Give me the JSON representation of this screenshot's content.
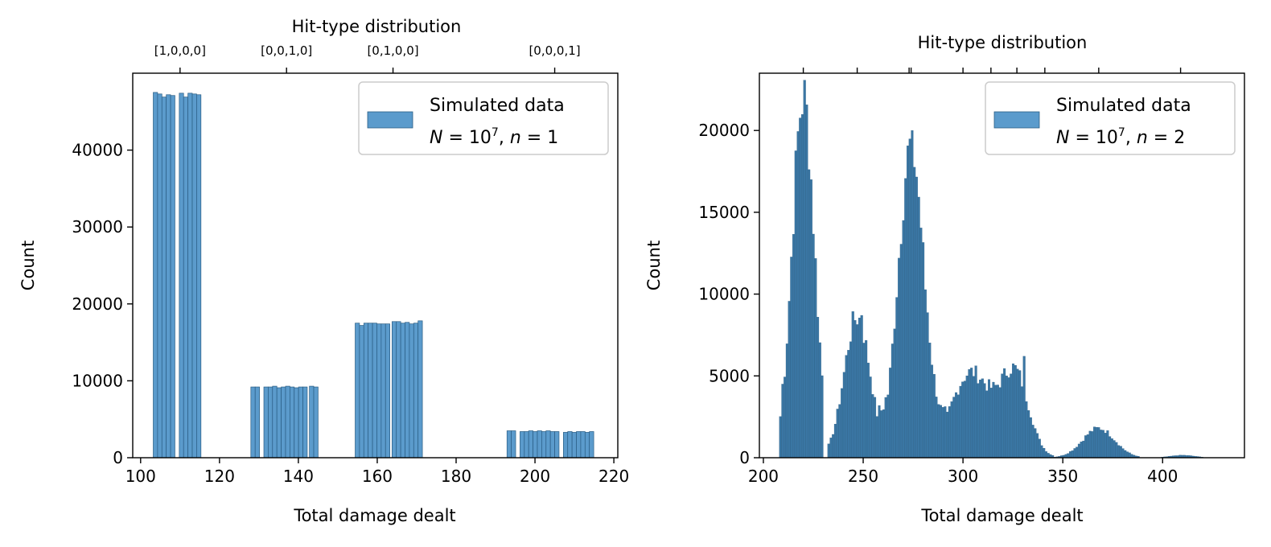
{
  "chart_data": [
    {
      "type": "bar",
      "panel": "left",
      "xlabel": "Total damage dealt",
      "ylabel": "Count",
      "top_axis_title": "Hit-type distribution",
      "xlim": [
        98,
        221
      ],
      "ylim": [
        0,
        50000
      ],
      "xticks": [
        100,
        120,
        140,
        160,
        180,
        200,
        220
      ],
      "yticks": [
        0,
        10000,
        20000,
        30000,
        40000
      ],
      "top_ticks": [
        {
          "x": 110,
          "label": "[1,0,0,0]"
        },
        {
          "x": 137,
          "label": "[0,0,1,0]"
        },
        {
          "x": 164,
          "label": "[0,1,0,0]"
        },
        {
          "x": 205,
          "label": "[0,0,0,1]"
        }
      ],
      "legend": {
        "label_line1": "Simulated data",
        "N_base": "10",
        "N_exp": "7",
        "n_value": "1",
        "position": "upper right"
      },
      "bin_width": 1.1,
      "bars": [
        {
          "x": 103.75,
          "y": 47500
        },
        {
          "x": 104.85,
          "y": 47300
        },
        {
          "x": 105.95,
          "y": 46900
        },
        {
          "x": 107.05,
          "y": 47200
        },
        {
          "x": 108.15,
          "y": 47100
        },
        {
          "x": 110.35,
          "y": 47400
        },
        {
          "x": 111.45,
          "y": 46900
        },
        {
          "x": 112.55,
          "y": 47400
        },
        {
          "x": 113.65,
          "y": 47300
        },
        {
          "x": 114.75,
          "y": 47200
        },
        {
          "x": 128.5,
          "y": 9200
        },
        {
          "x": 129.6,
          "y": 9200
        },
        {
          "x": 131.8,
          "y": 9200
        },
        {
          "x": 132.9,
          "y": 9200
        },
        {
          "x": 134.0,
          "y": 9300
        },
        {
          "x": 135.1,
          "y": 9100
        },
        {
          "x": 136.2,
          "y": 9200
        },
        {
          "x": 137.3,
          "y": 9300
        },
        {
          "x": 138.4,
          "y": 9200
        },
        {
          "x": 139.5,
          "y": 9100
        },
        {
          "x": 140.6,
          "y": 9200
        },
        {
          "x": 141.7,
          "y": 9200
        },
        {
          "x": 143.35,
          "y": 9300
        },
        {
          "x": 144.45,
          "y": 9200
        },
        {
          "x": 154.95,
          "y": 17500
        },
        {
          "x": 156.05,
          "y": 17200
        },
        {
          "x": 157.15,
          "y": 17500
        },
        {
          "x": 158.25,
          "y": 17500
        },
        {
          "x": 159.35,
          "y": 17500
        },
        {
          "x": 160.45,
          "y": 17400
        },
        {
          "x": 161.55,
          "y": 17400
        },
        {
          "x": 162.65,
          "y": 17400
        },
        {
          "x": 164.3,
          "y": 17700
        },
        {
          "x": 165.4,
          "y": 17700
        },
        {
          "x": 166.5,
          "y": 17500
        },
        {
          "x": 167.6,
          "y": 17600
        },
        {
          "x": 168.7,
          "y": 17400
        },
        {
          "x": 169.8,
          "y": 17500
        },
        {
          "x": 170.9,
          "y": 17800
        },
        {
          "x": 193.45,
          "y": 3500
        },
        {
          "x": 194.55,
          "y": 3500
        },
        {
          "x": 196.75,
          "y": 3400
        },
        {
          "x": 197.85,
          "y": 3400
        },
        {
          "x": 198.95,
          "y": 3500
        },
        {
          "x": 200.05,
          "y": 3400
        },
        {
          "x": 201.15,
          "y": 3500
        },
        {
          "x": 202.25,
          "y": 3400
        },
        {
          "x": 203.35,
          "y": 3500
        },
        {
          "x": 204.45,
          "y": 3400
        },
        {
          "x": 205.55,
          "y": 3400
        },
        {
          "x": 207.75,
          "y": 3300
        },
        {
          "x": 208.85,
          "y": 3400
        },
        {
          "x": 209.95,
          "y": 3300
        },
        {
          "x": 211.05,
          "y": 3400
        },
        {
          "x": 212.15,
          "y": 3400
        },
        {
          "x": 213.25,
          "y": 3300
        },
        {
          "x": 214.35,
          "y": 3400
        }
      ]
    },
    {
      "type": "bar",
      "panel": "right",
      "xlabel": "Total damage dealt",
      "ylabel": "Count",
      "top_axis_title": "Hit-type distribution",
      "xlim": [
        198,
        441
      ],
      "ylim": [
        0,
        23500
      ],
      "xticks": [
        200,
        250,
        300,
        350,
        400
      ],
      "yticks": [
        0,
        5000,
        10000,
        15000,
        20000
      ],
      "top_ticks_x": [
        220,
        247,
        273,
        274,
        300,
        314,
        327,
        341,
        368,
        409
      ],
      "legend": {
        "label_line1": "Simulated data",
        "N_base": "10",
        "N_exp": "7",
        "n_value": "2",
        "position": "upper right"
      },
      "histogram_peaks": [
        {
          "center": 220,
          "height": 22000,
          "sigma": 5.5,
          "lo": 208,
          "hi": 230
        },
        {
          "center": 247,
          "height": 8600,
          "sigma": 6.5,
          "lo": 232,
          "hi": 262
        },
        {
          "center": 274,
          "height": 19000,
          "sigma": 6.5,
          "lo": 258,
          "hi": 292
        },
        {
          "center": 304,
          "height": 5200,
          "sigma": 10,
          "lo": 282,
          "hi": 345
        },
        {
          "center": 326,
          "height": 5000,
          "sigma": 7,
          "lo": 282,
          "hi": 345
        },
        {
          "center": 368,
          "height": 1800,
          "sigma": 8,
          "lo": 344,
          "hi": 388
        },
        {
          "center": 410,
          "height": 150,
          "sigma": 6,
          "lo": 398,
          "hi": 424
        }
      ],
      "histogram_bin_width": 1.1,
      "histogram_range": [
        208,
        424
      ],
      "histogram_spikes": [
        {
          "x": 274.5,
          "y": 20000
        },
        {
          "x": 330.5,
          "y": 6200
        },
        {
          "x": 209.5,
          "y": 4500
        },
        {
          "x": 249.5,
          "y": 8700
        }
      ]
    }
  ],
  "colors": {
    "bar_fill": "#5b9bcc",
    "bar_edge": "#2a5d84",
    "dense_fill": "#3a76a3",
    "axis": "#000000",
    "legend_border": "#cccccc"
  }
}
